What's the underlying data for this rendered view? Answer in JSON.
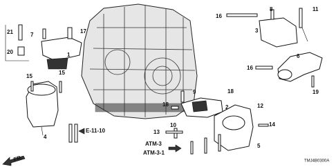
{
  "labels": [
    "21",
    "20",
    "7",
    "17",
    "1",
    "15",
    "15",
    "4",
    "16",
    "8",
    "11",
    "3",
    "16",
    "6",
    "19",
    "9",
    "18",
    "18",
    "2",
    "12",
    "10",
    "13",
    "14",
    "5"
  ],
  "references": [
    "E-11-10",
    "ATM-3",
    "ATM-3-1"
  ],
  "diagram_code": "TMJ4B0300A",
  "direction": "FR."
}
